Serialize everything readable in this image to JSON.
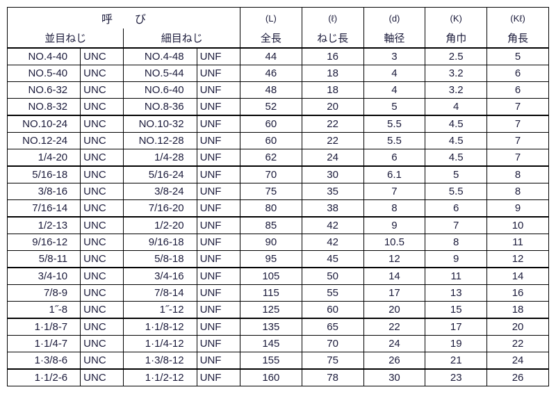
{
  "header": {
    "yobi": "呼　　び",
    "coarse": "並目ねじ",
    "fine": "細目ねじ",
    "cols": [
      {
        "s": "(L)",
        "l": "全長"
      },
      {
        "s": "(ℓ)",
        "l": "ねじ長"
      },
      {
        "s": "(d)",
        "l": "軸径"
      },
      {
        "s": "(K)",
        "l": "角巾"
      },
      {
        "s": "(Kℓ)",
        "l": "角長"
      }
    ]
  },
  "thick_after": [
    3,
    6,
    9,
    12,
    15,
    18
  ],
  "rows": [
    {
      "c1": "NO.4-40",
      "ct": "UNC",
      "f1": "NO.4-48",
      "ft": "UNF",
      "v": [
        "44",
        "16",
        "3",
        "2.5",
        "5"
      ]
    },
    {
      "c1": "NO.5-40",
      "ct": "UNC",
      "f1": "NO.5-44",
      "ft": "UNF",
      "v": [
        "46",
        "18",
        "4",
        "3.2",
        "6"
      ]
    },
    {
      "c1": "NO.6-32",
      "ct": "UNC",
      "f1": "NO.6-40",
      "ft": "UNF",
      "v": [
        "48",
        "18",
        "4",
        "3.2",
        "6"
      ]
    },
    {
      "c1": "NO.8-32",
      "ct": "UNC",
      "f1": "NO.8-36",
      "ft": "UNF",
      "v": [
        "52",
        "20",
        "5",
        "4",
        "7"
      ]
    },
    {
      "c1": "NO.10-24",
      "ct": "UNC",
      "f1": "NO.10-32",
      "ft": "UNF",
      "v": [
        "60",
        "22",
        "5.5",
        "4.5",
        "7"
      ]
    },
    {
      "c1": "NO.12-24",
      "ct": "UNC",
      "f1": "NO.12-28",
      "ft": "UNF",
      "v": [
        "60",
        "22",
        "5.5",
        "4.5",
        "7"
      ]
    },
    {
      "c1": "1/4-20",
      "ct": "UNC",
      "f1": "1/4-28",
      "ft": "UNF",
      "v": [
        "62",
        "24",
        "6",
        "4.5",
        "7"
      ]
    },
    {
      "c1": "5/16-18",
      "ct": "UNC",
      "f1": "5/16-24",
      "ft": "UNF",
      "v": [
        "70",
        "30",
        "6.1",
        "5",
        "8"
      ]
    },
    {
      "c1": "3/8-16",
      "ct": "UNC",
      "f1": "3/8-24",
      "ft": "UNF",
      "v": [
        "75",
        "35",
        "7",
        "5.5",
        "8"
      ]
    },
    {
      "c1": "7/16-14",
      "ct": "UNC",
      "f1": "7/16-20",
      "ft": "UNF",
      "v": [
        "80",
        "38",
        "8",
        "6",
        "9"
      ]
    },
    {
      "c1": "1/2-13",
      "ct": "UNC",
      "f1": "1/2-20",
      "ft": "UNF",
      "v": [
        "85",
        "42",
        "9",
        "7",
        "10"
      ]
    },
    {
      "c1": "9/16-12",
      "ct": "UNC",
      "f1": "9/16-18",
      "ft": "UNF",
      "v": [
        "90",
        "42",
        "10.5",
        "8",
        "11"
      ]
    },
    {
      "c1": "5/8-11",
      "ct": "UNC",
      "f1": "5/8-18",
      "ft": "UNF",
      "v": [
        "95",
        "45",
        "12",
        "9",
        "12"
      ]
    },
    {
      "c1": "3/4-10",
      "ct": "UNC",
      "f1": "3/4-16",
      "ft": "UNF",
      "v": [
        "105",
        "50",
        "14",
        "11",
        "14"
      ]
    },
    {
      "c1": "7/8-9",
      "ct": "UNC",
      "f1": "7/8-14",
      "ft": "UNF",
      "v": [
        "115",
        "55",
        "17",
        "13",
        "16"
      ]
    },
    {
      "c1": "1˝-8",
      "ct": "UNC",
      "f1": "1˝-12",
      "ft": "UNF",
      "v": [
        "125",
        "60",
        "20",
        "15",
        "18"
      ]
    },
    {
      "c1": "1·1/8-7",
      "ct": "UNC",
      "f1": "1·1/8-12",
      "ft": "UNF",
      "v": [
        "135",
        "65",
        "22",
        "17",
        "20"
      ]
    },
    {
      "c1": "1·1/4-7",
      "ct": "UNC",
      "f1": "1·1/4-12",
      "ft": "UNF",
      "v": [
        "145",
        "70",
        "24",
        "19",
        "22"
      ]
    },
    {
      "c1": "1·3/8-6",
      "ct": "UNC",
      "f1": "1·3/8-12",
      "ft": "UNF",
      "v": [
        "155",
        "75",
        "26",
        "21",
        "24"
      ]
    },
    {
      "c1": "1·1/2-6",
      "ct": "UNC",
      "f1": "1·1/2-12",
      "ft": "UNF",
      "v": [
        "160",
        "78",
        "30",
        "23",
        "26"
      ]
    }
  ]
}
